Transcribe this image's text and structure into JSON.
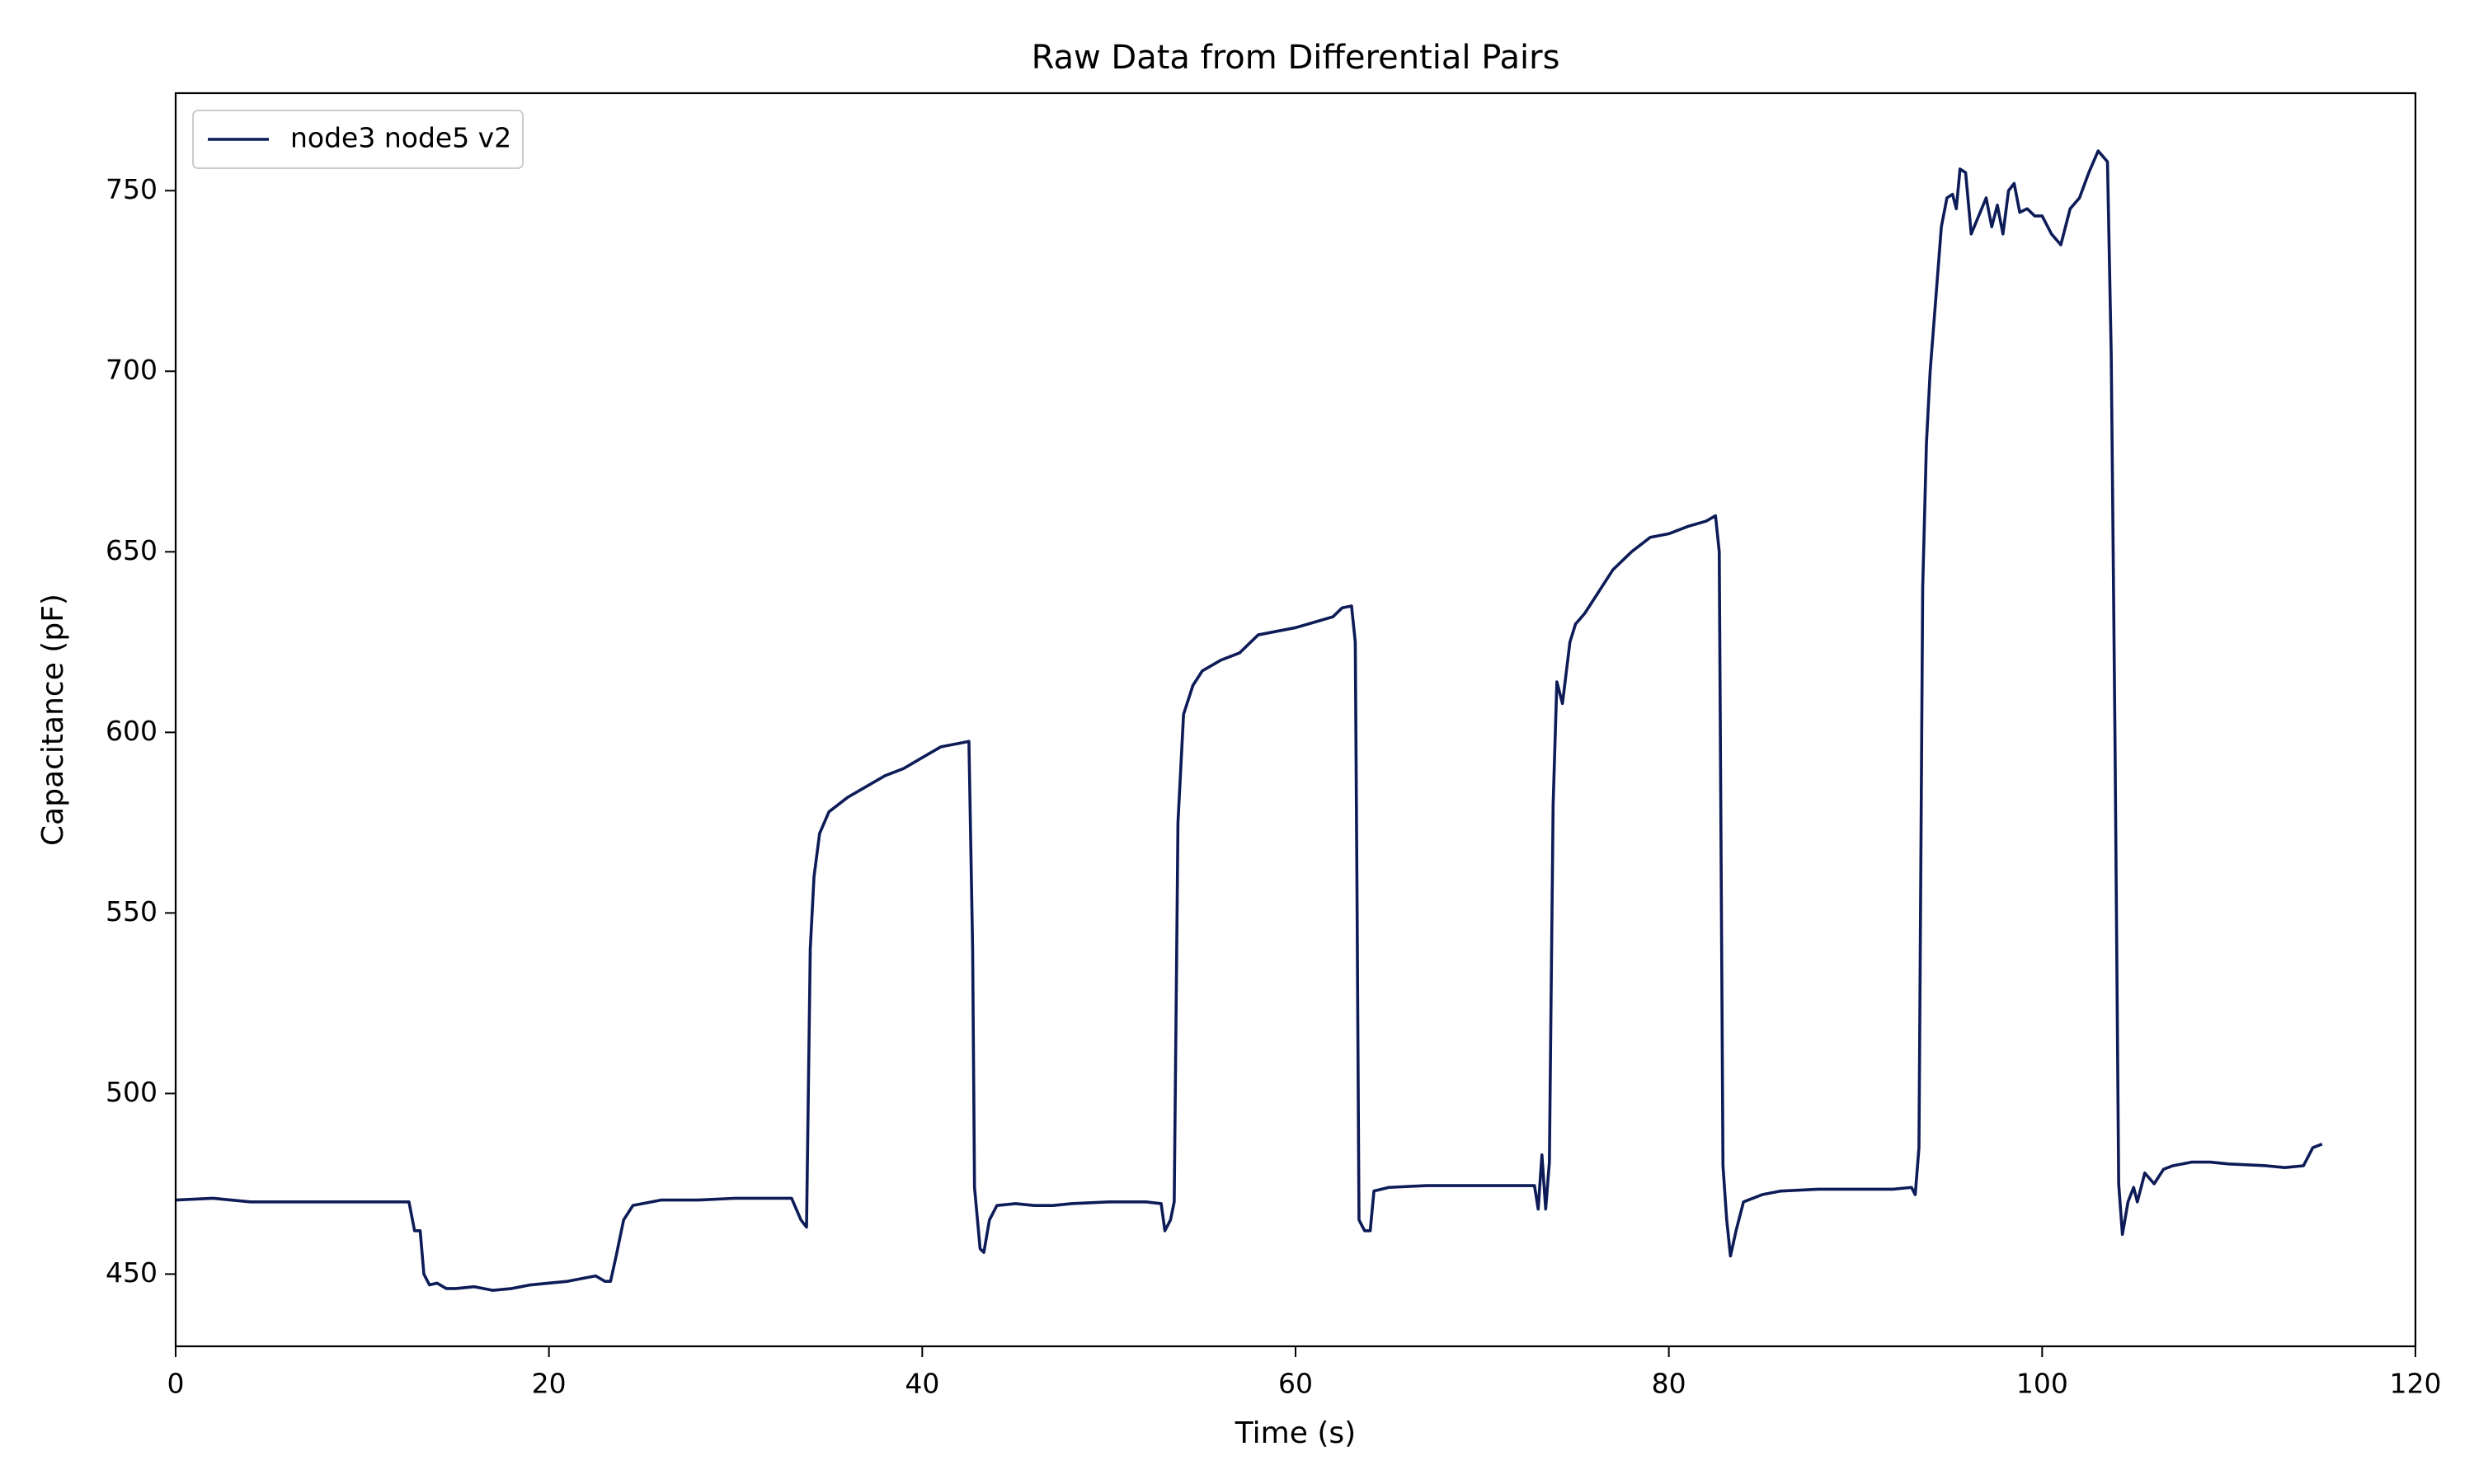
{
  "chart_data": {
    "type": "line",
    "title": "Raw Data from Differential Pairs",
    "x_label": "Time (s)",
    "y_label": "Capacitance (pF)",
    "xlim": [
      0,
      120
    ],
    "ylim": [
      430,
      777
    ],
    "xticks": [
      0,
      20,
      40,
      60,
      80,
      100,
      120
    ],
    "yticks": [
      450,
      500,
      550,
      600,
      650,
      700,
      750
    ],
    "grid": false,
    "legend": "upper left",
    "x": [
      0,
      2,
      4,
      6,
      8,
      10,
      12.5,
      12.8,
      13.1,
      13.3,
      13.6,
      14,
      14.5,
      15,
      16,
      17,
      18,
      19,
      20,
      21,
      22,
      22.5,
      23,
      23.3,
      23.6,
      24,
      24.5,
      26,
      28,
      30,
      32,
      33,
      33.5,
      33.8,
      34,
      34.2,
      34.5,
      35,
      36,
      37,
      38,
      39,
      40,
      41,
      42,
      42.5,
      42.7,
      42.8,
      43.1,
      43.3,
      43.6,
      44,
      45,
      46,
      47,
      48,
      50,
      52,
      52.8,
      53,
      53.3,
      53.5,
      53.7,
      54,
      54.5,
      55,
      56,
      57,
      58,
      59,
      60,
      61,
      62,
      62.5,
      63,
      63.2,
      63.3,
      63.4,
      63.7,
      64,
      64.2,
      65,
      67,
      69,
      71,
      72.8,
      73,
      73.2,
      73.4,
      73.6,
      73.8,
      74,
      74.3,
      74.7,
      75,
      75.5,
      76,
      77,
      78,
      79,
      80,
      81,
      82,
      82.5,
      82.7,
      82.9,
      83.1,
      83.3,
      83.6,
      84,
      85,
      86,
      88,
      90,
      92,
      93,
      93.2,
      93.4,
      93.6,
      93.8,
      94,
      94.3,
      94.6,
      94.9,
      95.2,
      95.4,
      95.6,
      95.9,
      96.2,
      96.6,
      97,
      97.3,
      97.6,
      97.9,
      98.2,
      98.5,
      98.8,
      99.2,
      99.6,
      100,
      100.5,
      101,
      101.5,
      102,
      102.5,
      103,
      103.5,
      103.7,
      103.9,
      104.1,
      104.3,
      104.6,
      104.9,
      105.1,
      105.5,
      106,
      106.5,
      107,
      108,
      109,
      110,
      112,
      113,
      114,
      114.5,
      115
    ],
    "series": [
      {
        "name": "node3 node5 v2",
        "color": "#0d1b57",
        "values": [
          470.5,
          471,
          470,
          470,
          470,
          470,
          470,
          462,
          462,
          450,
          447,
          447.5,
          446,
          446,
          446.5,
          445.5,
          446,
          447,
          447.5,
          448,
          449,
          449.5,
          448,
          448,
          455,
          465,
          469,
          470.5,
          470.5,
          471,
          471,
          471,
          465,
          463,
          540,
          560,
          572,
          578,
          582,
          585,
          588,
          590,
          593,
          596,
          597,
          597.5,
          540,
          474,
          457,
          456,
          465,
          469,
          469.5,
          469,
          469,
          469.5,
          470,
          470,
          469.5,
          462,
          465,
          470,
          575,
          605,
          613,
          617,
          620,
          622,
          627,
          628,
          629,
          630.5,
          632,
          634.5,
          635,
          625,
          550,
          465,
          462,
          462,
          473,
          474,
          474.5,
          474.5,
          474.5,
          474.5,
          468,
          483,
          468,
          481,
          580,
          614,
          608,
          625,
          630,
          633,
          637,
          645,
          650,
          654,
          655,
          657,
          658.5,
          660,
          650,
          480,
          465,
          455,
          462,
          470,
          472,
          473,
          473.5,
          473.5,
          473.5,
          474,
          472,
          485,
          640,
          680,
          700,
          720,
          740,
          748,
          749,
          745,
          756,
          755,
          738,
          743,
          748,
          740,
          746,
          738,
          750,
          752,
          744,
          745,
          743,
          743,
          738,
          735,
          745,
          748,
          755,
          761,
          758,
          705,
          600,
          475,
          461,
          470,
          474,
          470,
          478,
          475,
          479,
          480,
          481,
          481,
          480.5,
          480,
          479.5,
          480,
          485,
          486
        ]
      }
    ]
  }
}
